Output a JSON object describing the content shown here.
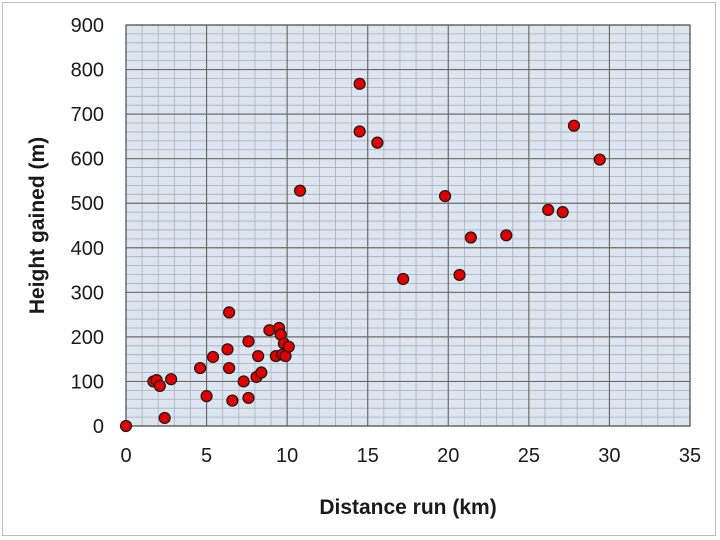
{
  "chart_data": {
    "type": "scatter",
    "title": "",
    "xlabel": "Distance run (km)",
    "ylabel": "Height gained (m)",
    "xlim": [
      0,
      35
    ],
    "ylim": [
      0,
      900
    ],
    "x_ticks": [
      "0",
      "5",
      "10",
      "15",
      "20",
      "25",
      "30",
      "35"
    ],
    "y_ticks": [
      "0",
      "100",
      "200",
      "300",
      "400",
      "500",
      "600",
      "700",
      "800",
      "900"
    ],
    "grid": true,
    "legend": "none",
    "plot_background": "#dde5f0",
    "marker_color": "#e00000",
    "marker_edge": "#1a1a1a",
    "points": [
      {
        "x": 0.0,
        "y": 0
      },
      {
        "x": 1.7,
        "y": 100
      },
      {
        "x": 1.9,
        "y": 103
      },
      {
        "x": 2.1,
        "y": 90
      },
      {
        "x": 2.4,
        "y": 18
      },
      {
        "x": 2.8,
        "y": 105
      },
      {
        "x": 4.6,
        "y": 130
      },
      {
        "x": 5.0,
        "y": 67
      },
      {
        "x": 5.4,
        "y": 155
      },
      {
        "x": 6.3,
        "y": 172
      },
      {
        "x": 6.4,
        "y": 255
      },
      {
        "x": 6.4,
        "y": 130
      },
      {
        "x": 6.6,
        "y": 57
      },
      {
        "x": 7.3,
        "y": 100
      },
      {
        "x": 7.6,
        "y": 190
      },
      {
        "x": 7.6,
        "y": 63
      },
      {
        "x": 8.1,
        "y": 110
      },
      {
        "x": 8.2,
        "y": 157
      },
      {
        "x": 8.4,
        "y": 120
      },
      {
        "x": 8.9,
        "y": 215
      },
      {
        "x": 9.3,
        "y": 157
      },
      {
        "x": 9.5,
        "y": 220
      },
      {
        "x": 9.6,
        "y": 205
      },
      {
        "x": 9.7,
        "y": 160
      },
      {
        "x": 9.8,
        "y": 185
      },
      {
        "x": 9.9,
        "y": 157
      },
      {
        "x": 10.1,
        "y": 178
      },
      {
        "x": 10.8,
        "y": 528
      },
      {
        "x": 14.5,
        "y": 768
      },
      {
        "x": 14.5,
        "y": 661
      },
      {
        "x": 15.6,
        "y": 636
      },
      {
        "x": 17.2,
        "y": 330
      },
      {
        "x": 19.8,
        "y": 516
      },
      {
        "x": 20.7,
        "y": 339
      },
      {
        "x": 21.4,
        "y": 423
      },
      {
        "x": 23.6,
        "y": 428
      },
      {
        "x": 26.2,
        "y": 485
      },
      {
        "x": 27.1,
        "y": 480
      },
      {
        "x": 27.8,
        "y": 674
      },
      {
        "x": 29.4,
        "y": 598
      }
    ]
  }
}
